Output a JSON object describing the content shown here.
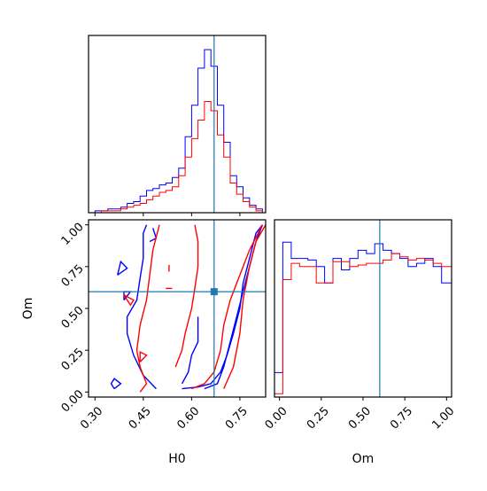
{
  "chart_data": {
    "type": "corner",
    "parameters": [
      "H0",
      "Om"
    ],
    "truths": {
      "H0": 0.67,
      "Om": 0.6
    },
    "colors": {
      "blue": "#0000ff",
      "red": "#ff0000",
      "truth": "#1f77b4"
    },
    "axes": {
      "H0": {
        "label": "H0",
        "range": [
          0.28,
          0.83
        ],
        "ticks": [
          0.3,
          0.45,
          0.6,
          0.75
        ],
        "tick_labels": [
          "0.30",
          "0.45",
          "0.60",
          "0.75"
        ]
      },
      "Om": {
        "label": "Om",
        "range": [
          -0.03,
          1.03
        ],
        "ticks": [
          0.0,
          0.25,
          0.5,
          0.75,
          1.0
        ],
        "tick_labels": [
          "0.00",
          "0.25",
          "0.50",
          "0.75",
          "1.00"
        ]
      }
    },
    "hist_H0": {
      "bins": [
        0.28,
        0.3,
        0.32,
        0.34,
        0.36,
        0.38,
        0.4,
        0.42,
        0.44,
        0.46,
        0.48,
        0.5,
        0.52,
        0.54,
        0.56,
        0.58,
        0.6,
        0.62,
        0.64,
        0.66,
        0.68,
        0.7,
        0.72,
        0.74,
        0.76,
        0.78,
        0.8,
        0.82,
        0.83
      ],
      "series": [
        {
          "color": "blue",
          "counts": [
            0,
            1,
            1,
            2,
            2,
            3,
            5,
            6,
            9,
            12,
            13,
            15,
            16,
            19,
            24,
            41,
            58,
            78,
            88,
            79,
            58,
            38,
            20,
            14,
            8,
            4,
            2,
            0
          ]
        },
        {
          "color": "red",
          "counts": [
            0,
            0,
            1,
            1,
            1,
            2,
            3,
            4,
            5,
            7,
            9,
            11,
            12,
            14,
            20,
            30,
            40,
            50,
            60,
            55,
            42,
            30,
            16,
            10,
            6,
            3,
            1,
            0
          ]
        }
      ]
    },
    "hist_Om": {
      "bins": [
        -0.03,
        0.02,
        0.07,
        0.12,
        0.17,
        0.22,
        0.27,
        0.32,
        0.37,
        0.42,
        0.47,
        0.52,
        0.57,
        0.62,
        0.67,
        0.72,
        0.77,
        0.82,
        0.87,
        0.92,
        0.97,
        1.03
      ],
      "series": [
        {
          "color": "blue",
          "counts": [
            15,
            95,
            85,
            85,
            84,
            80,
            70,
            85,
            78,
            85,
            90,
            88,
            94,
            90,
            88,
            85,
            80,
            82,
            85,
            80,
            70
          ]
        },
        {
          "color": "red",
          "counts": [
            2,
            72,
            82,
            80,
            80,
            70,
            70,
            83,
            83,
            80,
            81,
            82,
            82,
            84,
            88,
            86,
            84,
            85,
            84,
            82,
            80
          ]
        }
      ]
    },
    "contours": [
      {
        "color": "blue",
        "points": [
          [
            0.57,
            0.02
          ],
          [
            0.62,
            0.03
          ],
          [
            0.66,
            0.05
          ],
          [
            0.69,
            0.12
          ],
          [
            0.71,
            0.22
          ],
          [
            0.73,
            0.35
          ],
          [
            0.75,
            0.5
          ],
          [
            0.76,
            0.65
          ],
          [
            0.78,
            0.8
          ],
          [
            0.8,
            0.95
          ],
          [
            0.82,
            1.0
          ]
        ]
      },
      {
        "color": "blue",
        "points": [
          [
            0.64,
            0.02
          ],
          [
            0.68,
            0.05
          ],
          [
            0.7,
            0.15
          ],
          [
            0.72,
            0.3
          ],
          [
            0.74,
            0.45
          ],
          [
            0.76,
            0.6
          ],
          [
            0.78,
            0.75
          ],
          [
            0.8,
            0.9
          ],
          [
            0.82,
            1.0
          ]
        ]
      },
      {
        "color": "blue",
        "points": [
          [
            0.49,
            0.02
          ],
          [
            0.45,
            0.1
          ],
          [
            0.42,
            0.22
          ],
          [
            0.4,
            0.35
          ],
          [
            0.4,
            0.45
          ],
          [
            0.43,
            0.55
          ],
          [
            0.44,
            0.68
          ],
          [
            0.45,
            0.8
          ],
          [
            0.45,
            0.95
          ],
          [
            0.46,
            1.0
          ]
        ]
      },
      {
        "color": "blue",
        "points": [
          [
            0.57,
            0.05
          ],
          [
            0.59,
            0.12
          ],
          [
            0.6,
            0.22
          ],
          [
            0.62,
            0.3
          ],
          [
            0.62,
            0.45
          ]
        ]
      },
      {
        "color": "blue",
        "points": [
          [
            0.48,
            0.98
          ],
          [
            0.49,
            0.92
          ],
          [
            0.47,
            0.9
          ]
        ]
      },
      {
        "color": "blue",
        "points": [
          [
            0.36,
            0.02
          ],
          [
            0.38,
            0.05
          ],
          [
            0.36,
            0.08
          ],
          [
            0.35,
            0.05
          ],
          [
            0.36,
            0.02
          ]
        ]
      },
      {
        "color": "blue",
        "points": [
          [
            0.37,
            0.7
          ],
          [
            0.4,
            0.74
          ],
          [
            0.38,
            0.78
          ],
          [
            0.37,
            0.7
          ]
        ]
      },
      {
        "color": "blue",
        "points": [
          [
            0.39,
            0.55
          ],
          [
            0.41,
            0.6
          ],
          [
            0.39,
            0.6
          ],
          [
            0.39,
            0.55
          ]
        ]
      },
      {
        "color": "red",
        "points": [
          [
            0.44,
            0.0
          ],
          [
            0.46,
            0.05
          ],
          [
            0.44,
            0.15
          ],
          [
            0.43,
            0.25
          ],
          [
            0.44,
            0.4
          ],
          [
            0.46,
            0.55
          ],
          [
            0.47,
            0.7
          ],
          [
            0.48,
            0.85
          ],
          [
            0.5,
            1.0
          ]
        ]
      },
      {
        "color": "red",
        "points": [
          [
            0.6,
            0.02
          ],
          [
            0.64,
            0.05
          ],
          [
            0.67,
            0.12
          ],
          [
            0.69,
            0.25
          ],
          [
            0.7,
            0.4
          ],
          [
            0.72,
            0.55
          ],
          [
            0.75,
            0.7
          ],
          [
            0.78,
            0.85
          ],
          [
            0.82,
            1.0
          ]
        ]
      },
      {
        "color": "red",
        "points": [
          [
            0.7,
            0.02
          ],
          [
            0.73,
            0.15
          ],
          [
            0.75,
            0.35
          ],
          [
            0.76,
            0.55
          ],
          [
            0.78,
            0.75
          ],
          [
            0.8,
            0.9
          ],
          [
            0.83,
            1.0
          ]
        ]
      },
      {
        "color": "red",
        "points": [
          [
            0.55,
            0.15
          ],
          [
            0.57,
            0.25
          ],
          [
            0.58,
            0.35
          ],
          [
            0.6,
            0.5
          ],
          [
            0.61,
            0.62
          ],
          [
            0.62,
            0.75
          ],
          [
            0.62,
            0.9
          ],
          [
            0.61,
            1.0
          ]
        ]
      },
      {
        "color": "red",
        "points": [
          [
            0.39,
            0.58
          ],
          [
            0.42,
            0.55
          ],
          [
            0.41,
            0.52
          ],
          [
            0.39,
            0.58
          ]
        ]
      },
      {
        "color": "red",
        "points": [
          [
            0.44,
            0.18
          ],
          [
            0.46,
            0.22
          ],
          [
            0.44,
            0.24
          ],
          [
            0.44,
            0.18
          ]
        ]
      },
      {
        "color": "red",
        "points": [
          [
            0.53,
            0.76
          ],
          [
            0.53,
            0.72
          ]
        ]
      },
      {
        "color": "red",
        "points": [
          [
            0.52,
            0.62
          ],
          [
            0.54,
            0.62
          ]
        ]
      }
    ]
  }
}
